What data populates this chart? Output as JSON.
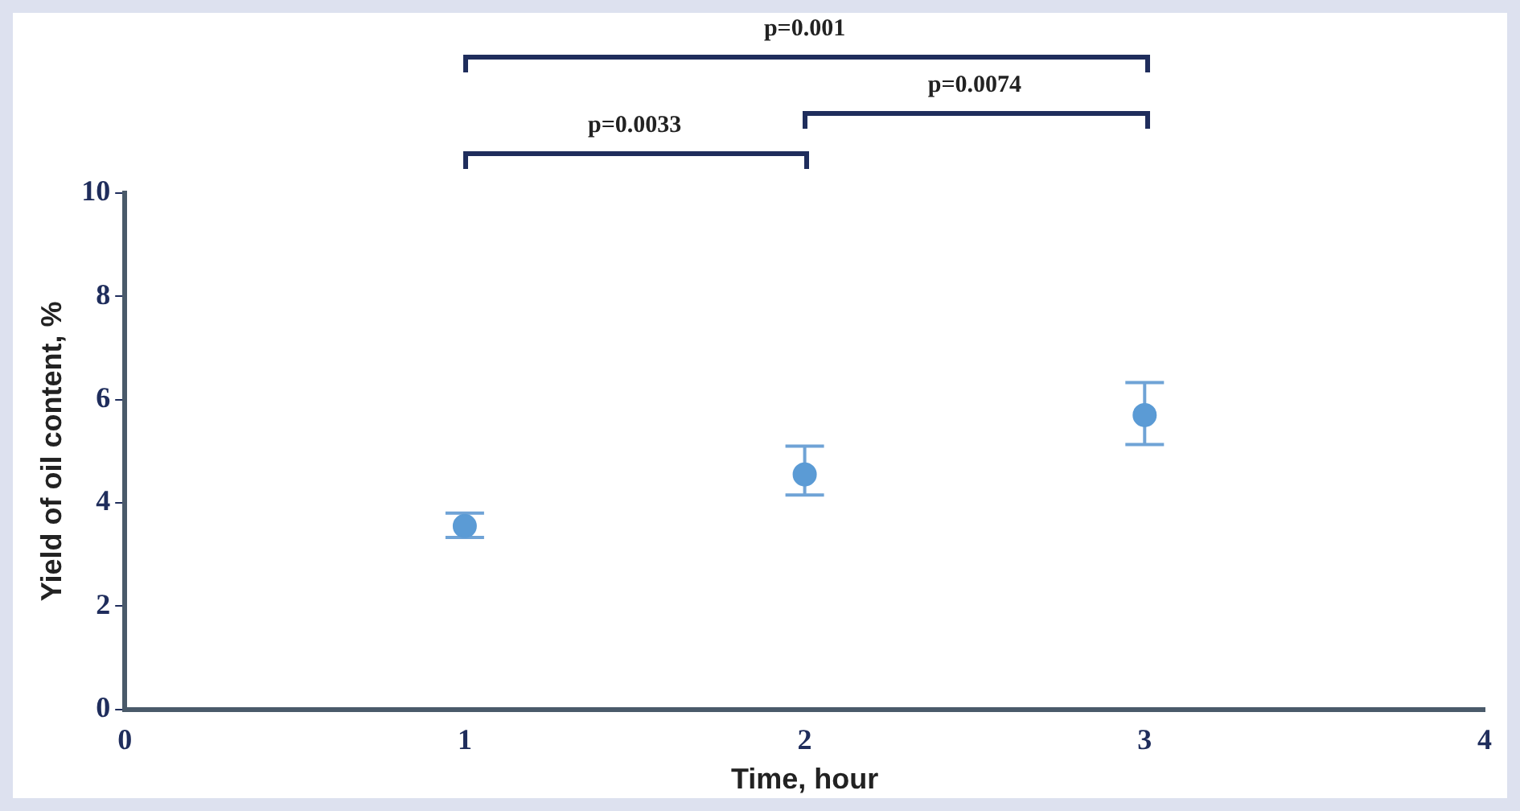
{
  "chart_data": {
    "type": "scatter",
    "xlabel": "Time, hour",
    "ylabel": "Yield of oil content, %",
    "x": [
      1,
      2,
      3
    ],
    "series": [
      {
        "color": "#5b9bd5",
        "values": [
          3.55,
          4.55,
          5.7
        ],
        "errors": [
          [
            3.33,
            3.8
          ],
          [
            4.15,
            5.1
          ],
          [
            5.13,
            6.33
          ]
        ]
      }
    ],
    "xlim": [
      0,
      4
    ],
    "xticks": [
      0,
      1,
      2,
      3,
      4
    ],
    "ylim": [
      0,
      10
    ],
    "yticks": [
      0,
      2,
      4,
      6,
      8,
      10
    ],
    "marker": "circle",
    "grid": false,
    "annotations": [
      "p=0.0033",
      "p=0.0074",
      "p=0.001"
    ]
  }
}
